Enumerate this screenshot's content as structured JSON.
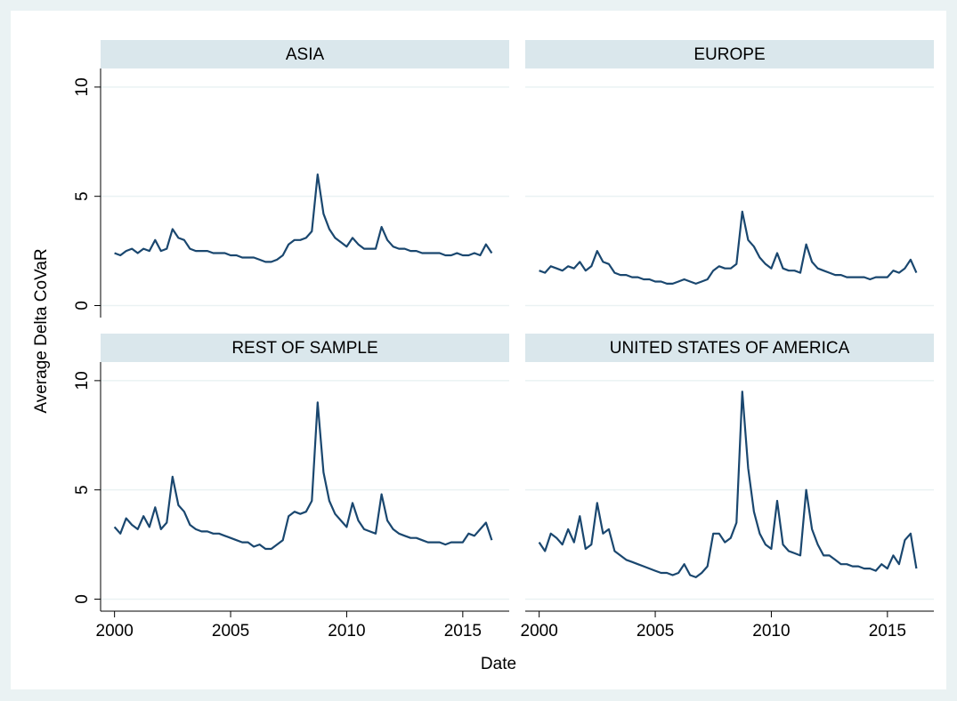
{
  "chart_data": {
    "type": "line",
    "y_label": "Average Delta CoVaR",
    "x_label": "Date",
    "color": "#1a476f",
    "grid": true,
    "xlim": [
      1999.4,
      2017.0
    ],
    "ylim": [
      -0.55,
      10.85
    ],
    "xticks": [
      2000,
      2005,
      2010,
      2015
    ],
    "yticks": [
      0,
      5,
      10
    ],
    "x": [
      2000,
      2000.25,
      2000.5,
      2000.75,
      2001,
      2001.25,
      2001.5,
      2001.75,
      2002,
      2002.25,
      2002.5,
      2002.75,
      2003,
      2003.25,
      2003.5,
      2003.75,
      2004,
      2004.25,
      2004.5,
      2004.75,
      2005,
      2005.25,
      2005.5,
      2005.75,
      2006,
      2006.25,
      2006.5,
      2006.75,
      2007,
      2007.25,
      2007.5,
      2007.75,
      2008,
      2008.25,
      2008.5,
      2008.75,
      2009,
      2009.25,
      2009.5,
      2009.75,
      2010,
      2010.25,
      2010.5,
      2010.75,
      2011,
      2011.25,
      2011.5,
      2011.75,
      2012,
      2012.25,
      2012.5,
      2012.75,
      2013,
      2013.25,
      2013.5,
      2013.75,
      2014,
      2014.25,
      2014.5,
      2014.75,
      2015,
      2015.25,
      2015.5,
      2015.75,
      2016,
      2016.25
    ],
    "panels": [
      {
        "title": "ASIA",
        "values": [
          2.4,
          2.3,
          2.5,
          2.6,
          2.4,
          2.6,
          2.5,
          3.0,
          2.5,
          2.6,
          3.5,
          3.1,
          3.0,
          2.6,
          2.5,
          2.5,
          2.5,
          2.4,
          2.4,
          2.4,
          2.3,
          2.3,
          2.2,
          2.2,
          2.2,
          2.1,
          2.0,
          2.0,
          2.1,
          2.3,
          2.8,
          3.0,
          3.0,
          3.1,
          3.4,
          6.0,
          4.2,
          3.5,
          3.1,
          2.9,
          2.7,
          3.1,
          2.8,
          2.6,
          2.6,
          2.6,
          3.6,
          3.0,
          2.7,
          2.6,
          2.6,
          2.5,
          2.5,
          2.4,
          2.4,
          2.4,
          2.4,
          2.3,
          2.3,
          2.4,
          2.3,
          2.3,
          2.4,
          2.3,
          2.8,
          2.4
        ]
      },
      {
        "title": "EUROPE",
        "values": [
          1.6,
          1.5,
          1.8,
          1.7,
          1.6,
          1.8,
          1.7,
          2.0,
          1.6,
          1.8,
          2.5,
          2.0,
          1.9,
          1.5,
          1.4,
          1.4,
          1.3,
          1.3,
          1.2,
          1.2,
          1.1,
          1.1,
          1.0,
          1.0,
          1.1,
          1.2,
          1.1,
          1.0,
          1.1,
          1.2,
          1.6,
          1.8,
          1.7,
          1.7,
          1.9,
          4.3,
          3.0,
          2.7,
          2.2,
          1.9,
          1.7,
          2.4,
          1.7,
          1.6,
          1.6,
          1.5,
          2.8,
          2.0,
          1.7,
          1.6,
          1.5,
          1.4,
          1.4,
          1.3,
          1.3,
          1.3,
          1.3,
          1.2,
          1.3,
          1.3,
          1.3,
          1.6,
          1.5,
          1.7,
          2.1,
          1.5
        ]
      },
      {
        "title": "REST OF SAMPLE",
        "values": [
          3.3,
          3.0,
          3.7,
          3.4,
          3.2,
          3.8,
          3.3,
          4.2,
          3.2,
          3.5,
          5.6,
          4.3,
          4.0,
          3.4,
          3.2,
          3.1,
          3.1,
          3.0,
          3.0,
          2.9,
          2.8,
          2.7,
          2.6,
          2.6,
          2.4,
          2.5,
          2.3,
          2.3,
          2.5,
          2.7,
          3.8,
          4.0,
          3.9,
          4.0,
          4.5,
          9.0,
          5.8,
          4.5,
          3.9,
          3.6,
          3.3,
          4.4,
          3.6,
          3.2,
          3.1,
          3.0,
          4.8,
          3.6,
          3.2,
          3.0,
          2.9,
          2.8,
          2.8,
          2.7,
          2.6,
          2.6,
          2.6,
          2.5,
          2.6,
          2.6,
          2.6,
          3.0,
          2.9,
          3.2,
          3.5,
          2.7
        ]
      },
      {
        "title": "UNITED STATES OF AMERICA",
        "values": [
          2.6,
          2.2,
          3.0,
          2.8,
          2.5,
          3.2,
          2.6,
          3.8,
          2.3,
          2.5,
          4.4,
          3.0,
          3.2,
          2.2,
          2.0,
          1.8,
          1.7,
          1.6,
          1.5,
          1.4,
          1.3,
          1.2,
          1.2,
          1.1,
          1.2,
          1.6,
          1.1,
          1.0,
          1.2,
          1.5,
          3.0,
          3.0,
          2.6,
          2.8,
          3.5,
          9.5,
          6.0,
          4.0,
          3.0,
          2.5,
          2.3,
          4.5,
          2.5,
          2.2,
          2.1,
          2.0,
          5.0,
          3.2,
          2.5,
          2.0,
          2.0,
          1.8,
          1.6,
          1.6,
          1.5,
          1.5,
          1.4,
          1.4,
          1.3,
          1.6,
          1.4,
          2.0,
          1.6,
          2.7,
          3.0,
          1.4
        ]
      }
    ]
  }
}
